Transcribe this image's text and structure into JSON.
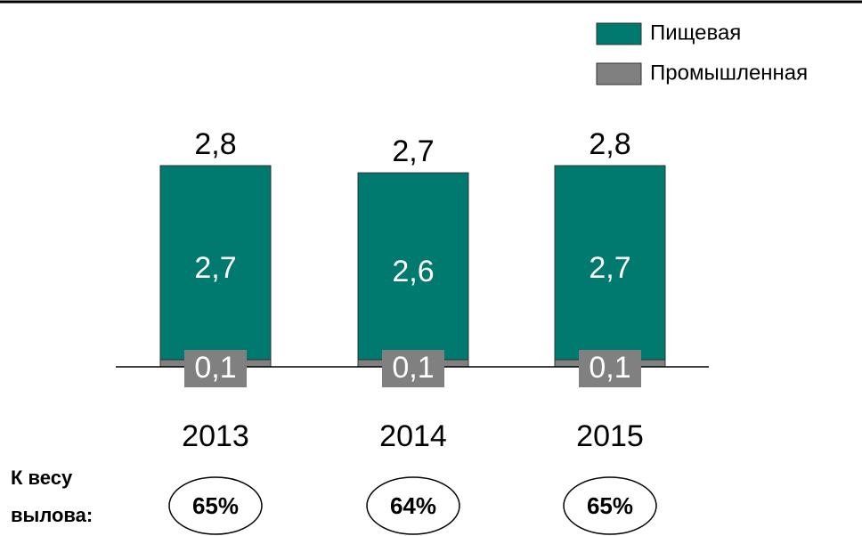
{
  "chart_data": {
    "type": "stacked-bar",
    "categories": [
      "2013",
      "2014",
      "2015"
    ],
    "series": [
      {
        "name": "Промышленная",
        "color": "#808080",
        "values": [
          0.1,
          0.1,
          0.1
        ],
        "value_labels": [
          "0,1",
          "0,1",
          "0,1"
        ]
      },
      {
        "name": "Пищевая",
        "color": "#00796e",
        "values": [
          2.7,
          2.6,
          2.7
        ],
        "value_labels": [
          "2,7",
          "2,6",
          "2,7"
        ]
      }
    ],
    "totals": [
      2.8,
      2.7,
      2.8
    ],
    "total_labels": [
      "2,8",
      "2,7",
      "2,8"
    ],
    "share_label": "К весу вылова:",
    "shares": [
      65,
      64,
      65
    ],
    "share_labels": [
      "65%",
      "64%",
      "65%"
    ],
    "legend": "top-right"
  }
}
